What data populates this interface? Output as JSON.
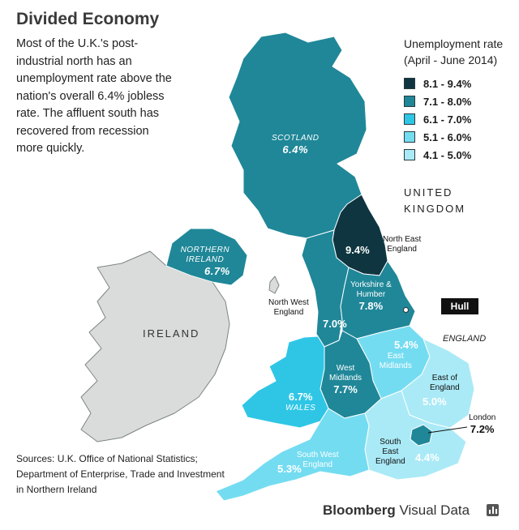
{
  "header": {
    "title": "Divided Economy",
    "intro": "Most of the U.K.'s post-industrial north has an unemployment rate above the nation's overall 6.4% jobless rate. The affluent south has recovered from recession more quickly."
  },
  "legend": {
    "title_line1": "Unemployment rate",
    "title_line2": "(April - June 2014)",
    "bins": [
      {
        "label": "8.1 - 9.4%",
        "color": "#0f3640"
      },
      {
        "label": "7.1 - 8.0%",
        "color": "#1f8798"
      },
      {
        "label": "6.1 - 7.0%",
        "color": "#2fc6e6"
      },
      {
        "label": "5.1 - 6.0%",
        "color": "#74dcf1"
      },
      {
        "label": "4.1 - 5.0%",
        "color": "#aaeaf6"
      }
    ]
  },
  "labels": {
    "country_line1": "UNITED",
    "country_line2": "KINGDOM",
    "ireland": "IRELAND",
    "england": "ENGLAND",
    "hull": "Hull"
  },
  "regions": {
    "scotland": {
      "name": "SCOTLAND",
      "value": "6.4%"
    },
    "northern_ireland": {
      "name_line1": "NORTHERN",
      "name_line2": "IRELAND",
      "value": "6.7%"
    },
    "north_east": {
      "name_line1": "North East",
      "name_line2": "England",
      "value": "9.4%"
    },
    "north_west": {
      "name_line1": "North West",
      "name_line2": "England",
      "value": "7.0%"
    },
    "yorkshire": {
      "name_line1": "Yorkshire &",
      "name_line2": "Humber",
      "value": "7.8%"
    },
    "east_midlands": {
      "name_line1": "East",
      "name_line2": "Midlands",
      "value": "5.4%"
    },
    "west_midlands": {
      "name_line1": "West",
      "name_line2": "Midlands",
      "value": "7.7%"
    },
    "wales": {
      "name": "WALES",
      "value": "6.7%"
    },
    "east_of_england": {
      "name_line1": "East of",
      "name_line2": "England",
      "value": "5.0%"
    },
    "london": {
      "name": "London",
      "value": "7.2%"
    },
    "south_east": {
      "name_line1": "South",
      "name_line2": "East",
      "name_line3": "England",
      "value": "4.4%"
    },
    "south_west": {
      "name_line1": "South West",
      "name_line2": "England",
      "value": "5.3%"
    }
  },
  "footer": {
    "sources_line1": "Sources: U.K. Office of National Statistics;",
    "sources_line2": "Department of Enterprise, Trade and Investment",
    "sources_line3": "in Northern Ireland",
    "brand_bold": "Bloomberg",
    "brand_rest": " Visual Data",
    "brand_icon": "bar-chart-icon"
  }
}
